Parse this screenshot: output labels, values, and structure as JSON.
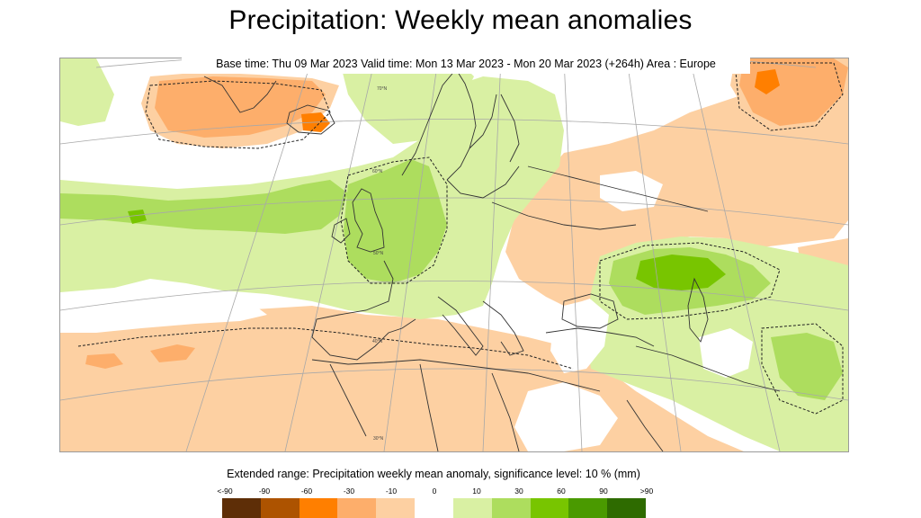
{
  "title": "Precipitation: Weekly mean anomalies",
  "info": "Base time: Thu 09 Mar 2023 Valid time: Mon 13 Mar 2023 - Mon 20 Mar 2023 (+264h) Area : Europe",
  "map": {
    "graticule_labels": [
      "70°N",
      "60°N",
      "50°N",
      "40°N",
      "30°N"
    ],
    "colors": {
      "border": "#333333",
      "graticule": "#a8a8a8",
      "significance_contour": "#222222"
    }
  },
  "legend": {
    "title": "Extended range: Precipitation weekly mean anomaly, significance level: 10 % (mm)",
    "ticks": [
      "<-90",
      "-90",
      "-60",
      "-30",
      "-10",
      "0",
      "10",
      "30",
      "60",
      "90",
      ">90"
    ],
    "bins": [
      {
        "color": "#5e2e07"
      },
      {
        "color": "#ad5300"
      },
      {
        "color": "#ff7f00"
      },
      {
        "color": "#fdae6b"
      },
      {
        "color": "#fdd0a2"
      },
      {
        "color": "#ffffff"
      },
      {
        "color": "#d9f0a3"
      },
      {
        "color": "#addd5e"
      },
      {
        "color": "#78c500"
      },
      {
        "color": "#4a9a00"
      },
      {
        "color": "#2e6b00"
      }
    ]
  }
}
